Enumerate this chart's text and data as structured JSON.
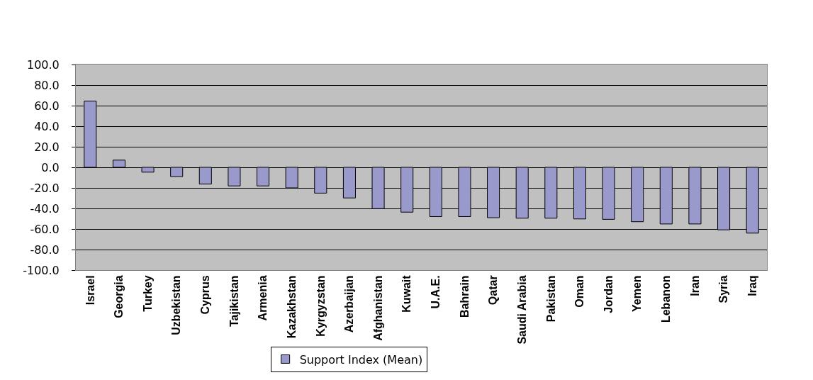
{
  "chart_data": {
    "type": "bar",
    "categories": [
      "Israel",
      "Georgia",
      "Turkey",
      "Uzbekistan",
      "Cyprus",
      "Tajikistan",
      "Armenia",
      "Kazakhstan",
      "Kyrgyzstan",
      "Azerbaijan",
      "Afghanistan",
      "Kuwait",
      "U.A.E.",
      "Bahrain",
      "Qatar",
      "Saudi Arabia",
      "Pakistan",
      "Oman",
      "Jordan",
      "Yemen",
      "Lebanon",
      "Iran",
      "Syria",
      "Iraq"
    ],
    "series": [
      {
        "name": "Support Index (Mean)",
        "color": "#9999cc",
        "values": [
          64.4,
          7.0,
          -4.7,
          -9.0,
          -16.3,
          -18.1,
          -18.1,
          -20.0,
          -25.1,
          -29.8,
          -40.2,
          -43.6,
          -47.9,
          -47.9,
          -49.0,
          -49.5,
          -49.5,
          -50.2,
          -50.6,
          -52.9,
          -55.1,
          -55.1,
          -60.8,
          -64.0
        ]
      }
    ],
    "ylim": [
      -100,
      100
    ],
    "yticks": [
      {
        "value": 100,
        "label": "100.0"
      },
      {
        "value": 80,
        "label": "80.0"
      },
      {
        "value": 60,
        "label": "60.0"
      },
      {
        "value": 40,
        "label": "40.0"
      },
      {
        "value": 20,
        "label": "20.0"
      },
      {
        "value": 0,
        "label": "0.0"
      },
      {
        "value": -20,
        "label": "-20.0"
      },
      {
        "value": -40,
        "label": "-40.0"
      },
      {
        "value": -60,
        "label": "-60.0"
      },
      {
        "value": -80,
        "label": "-80.0"
      },
      {
        "value": -100,
        "label": "-100.0"
      }
    ],
    "grid": "y",
    "legend": "bottom"
  }
}
